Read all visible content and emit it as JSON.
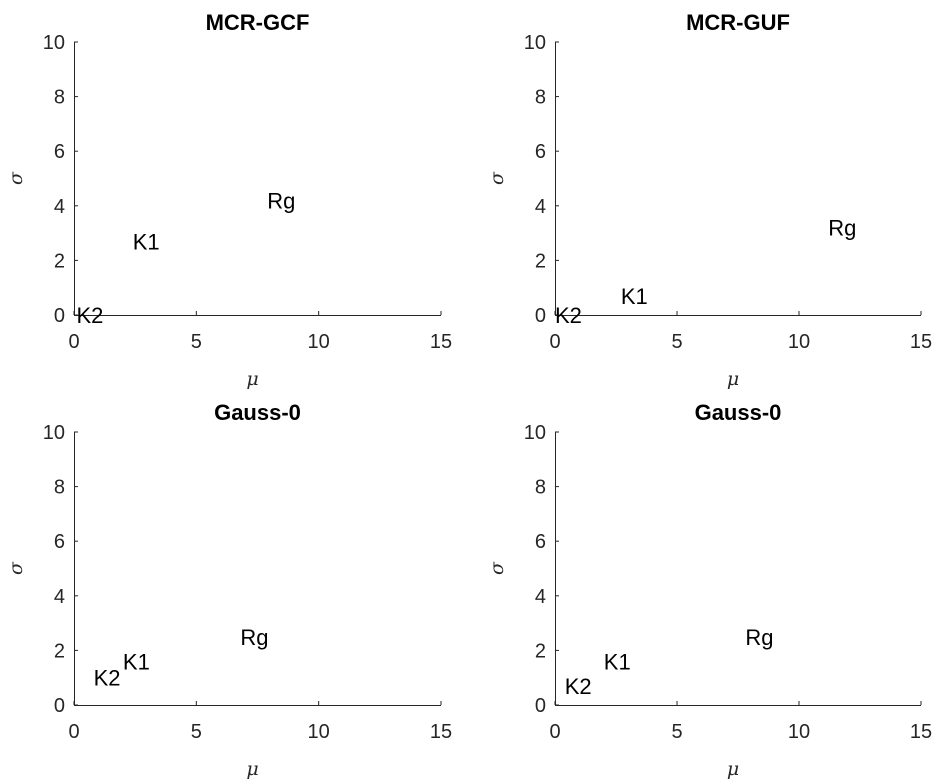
{
  "chart_data": [
    {
      "type": "scatter",
      "title": "MCR-GCF",
      "xlabel": "μ",
      "ylabel": "σ",
      "xlim": [
        0,
        15
      ],
      "ylim": [
        0,
        10
      ],
      "xticks": [
        "0",
        "5",
        "10",
        "15"
      ],
      "yticks": [
        "0",
        "2",
        "4",
        "6",
        "8",
        "10"
      ],
      "grid": false,
      "points": [
        {
          "label": "Rg",
          "x": 7.9,
          "y": 4.2
        },
        {
          "label": "K1",
          "x": 2.4,
          "y": 2.7
        },
        {
          "label": "K2",
          "x": 0.1,
          "y": 0.0
        }
      ]
    },
    {
      "type": "scatter",
      "title": "MCR-GUF",
      "xlabel": "μ",
      "ylabel": "σ",
      "xlim": [
        0,
        15
      ],
      "ylim": [
        0,
        10
      ],
      "xticks": [
        "0",
        "5",
        "10",
        "15"
      ],
      "yticks": [
        "0",
        "2",
        "4",
        "6",
        "8",
        "10"
      ],
      "grid": false,
      "points": [
        {
          "label": "Rg",
          "x": 11.2,
          "y": 3.2
        },
        {
          "label": "K1",
          "x": 2.7,
          "y": 0.7
        },
        {
          "label": "K2",
          "x": 0.0,
          "y": 0.0
        }
      ]
    },
    {
      "type": "scatter",
      "title": "Gauss-0",
      "xlabel": "μ",
      "ylabel": "σ",
      "xlim": [
        0,
        15
      ],
      "ylim": [
        0,
        10
      ],
      "xticks": [
        "0",
        "5",
        "10",
        "15"
      ],
      "yticks": [
        "0",
        "2",
        "4",
        "6",
        "8",
        "10"
      ],
      "grid": false,
      "points": [
        {
          "label": "Rg",
          "x": 6.8,
          "y": 2.5
        },
        {
          "label": "K1",
          "x": 2.0,
          "y": 1.6
        },
        {
          "label": "K2",
          "x": 0.8,
          "y": 1.0
        }
      ]
    },
    {
      "type": "scatter",
      "title": "Gauss-0",
      "xlabel": "μ",
      "ylabel": "σ",
      "xlim": [
        0,
        15
      ],
      "ylim": [
        0,
        10
      ],
      "xticks": [
        "0",
        "5",
        "10",
        "15"
      ],
      "yticks": [
        "0",
        "2",
        "4",
        "6",
        "8",
        "10"
      ],
      "grid": false,
      "points": [
        {
          "label": "Rg",
          "x": 7.8,
          "y": 2.5
        },
        {
          "label": "K1",
          "x": 2.0,
          "y": 1.6
        },
        {
          "label": "K2",
          "x": 0.4,
          "y": 0.7
        }
      ]
    }
  ]
}
